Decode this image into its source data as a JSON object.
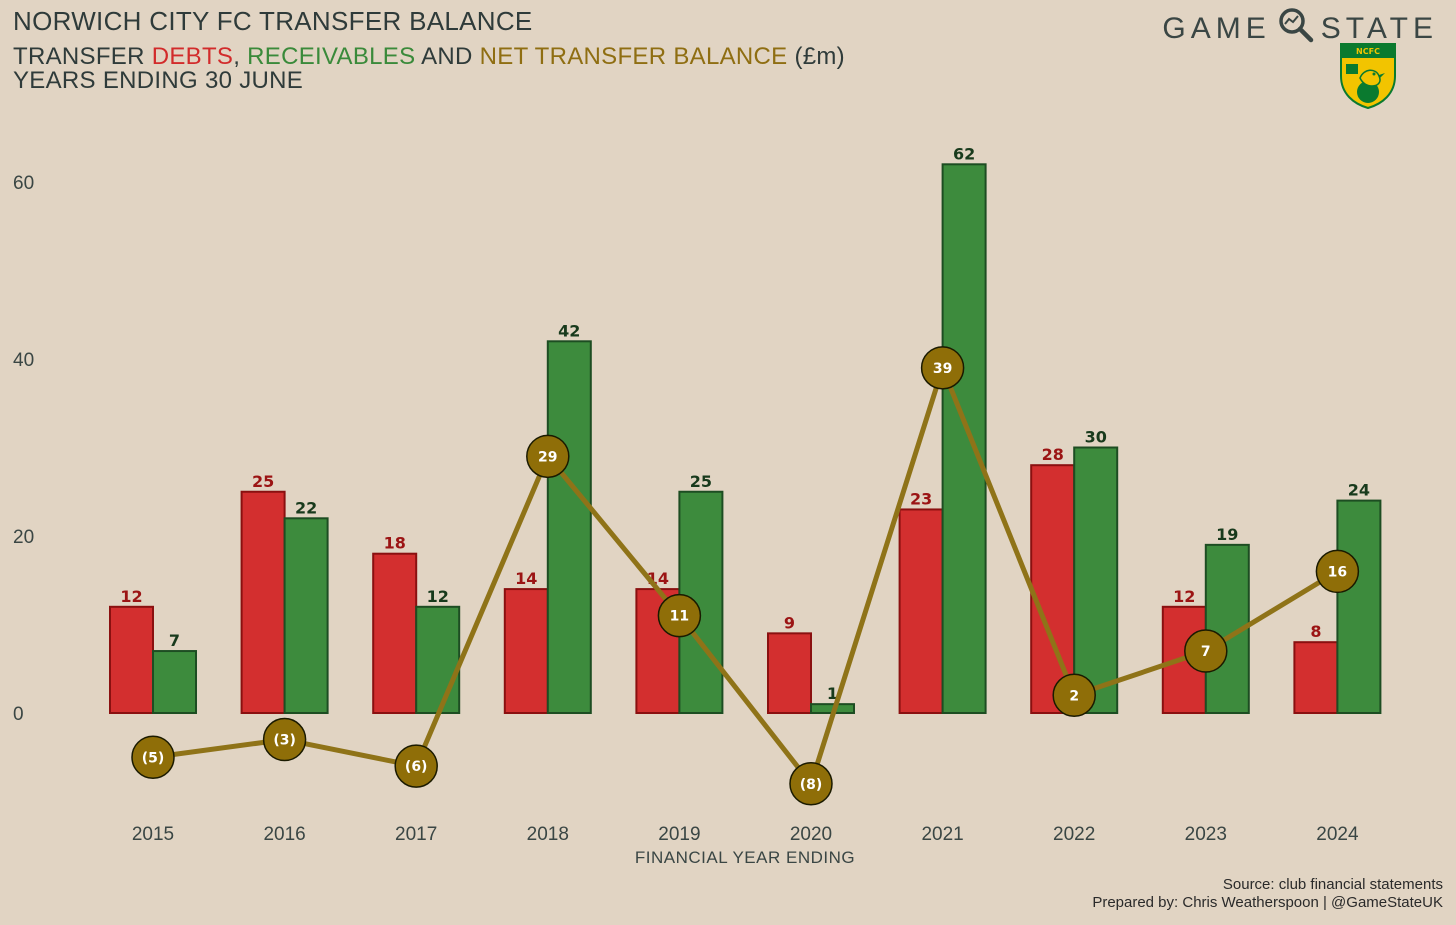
{
  "header": {
    "title": "NORWICH CITY FC TRANSFER BALANCE",
    "subtitle_prefix": "TRANSFER ",
    "subtitle_debts": "DEBTS",
    "subtitle_sep": ", ",
    "subtitle_receivables": "RECEIVABLES",
    "subtitle_and": " AND ",
    "subtitle_net": "NET TRANSFER BALANCE",
    "subtitle_unit": " (£m)",
    "subtitle_line2": "YEARS ENDING 30 JUNE"
  },
  "brand": {
    "left": "GAME",
    "right": "STATE",
    "icon": "magnifier-icon",
    "crest_icon": "norwich-crest-icon",
    "crest_text": "NCFC"
  },
  "footer": {
    "source": "Source: club financial statements",
    "prepared": "Prepared by: Chris Weatherspoon | @GameStateUK"
  },
  "colors": {
    "debts": "#d32f2f",
    "receivables": "#3d8b3d",
    "net": "#8f7318",
    "net_dot": "#8f6e08",
    "background": "#e1d4c3"
  },
  "chart_data": {
    "type": "bar",
    "categories": [
      "2015",
      "2016",
      "2017",
      "2018",
      "2019",
      "2020",
      "2021",
      "2022",
      "2023",
      "2024"
    ],
    "series": [
      {
        "name": "DEBTS",
        "type": "bar",
        "values": [
          12,
          25,
          18,
          14,
          14,
          9,
          23,
          28,
          12,
          8
        ]
      },
      {
        "name": "RECEIVABLES",
        "type": "bar",
        "values": [
          7,
          22,
          12,
          42,
          25,
          1,
          62,
          30,
          19,
          24
        ]
      },
      {
        "name": "NET TRANSFER BALANCE",
        "type": "line",
        "values": [
          -5,
          -3,
          -6,
          29,
          11,
          -8,
          39,
          2,
          7,
          16
        ]
      }
    ],
    "debt_labels": [
      "12",
      "25",
      "18",
      "14",
      "14",
      "9",
      "23",
      "28",
      "12",
      "8"
    ],
    "receivable_labels": [
      "7",
      "22",
      "12",
      "42",
      "25",
      "1",
      "62",
      "30",
      "19",
      "24"
    ],
    "net_labels": [
      "(5)",
      "(3)",
      "(6)",
      "29",
      "11",
      "(8)",
      "39",
      "2",
      "7",
      "16"
    ],
    "yticks": [
      "0",
      "20",
      "40",
      "60"
    ],
    "ytick_values": [
      0,
      20,
      40,
      60
    ],
    "xlabel": "FINANCIAL YEAR ENDING",
    "ylabel": "",
    "ylim": [
      -13,
      68
    ],
    "grid": false,
    "legend": "none"
  }
}
